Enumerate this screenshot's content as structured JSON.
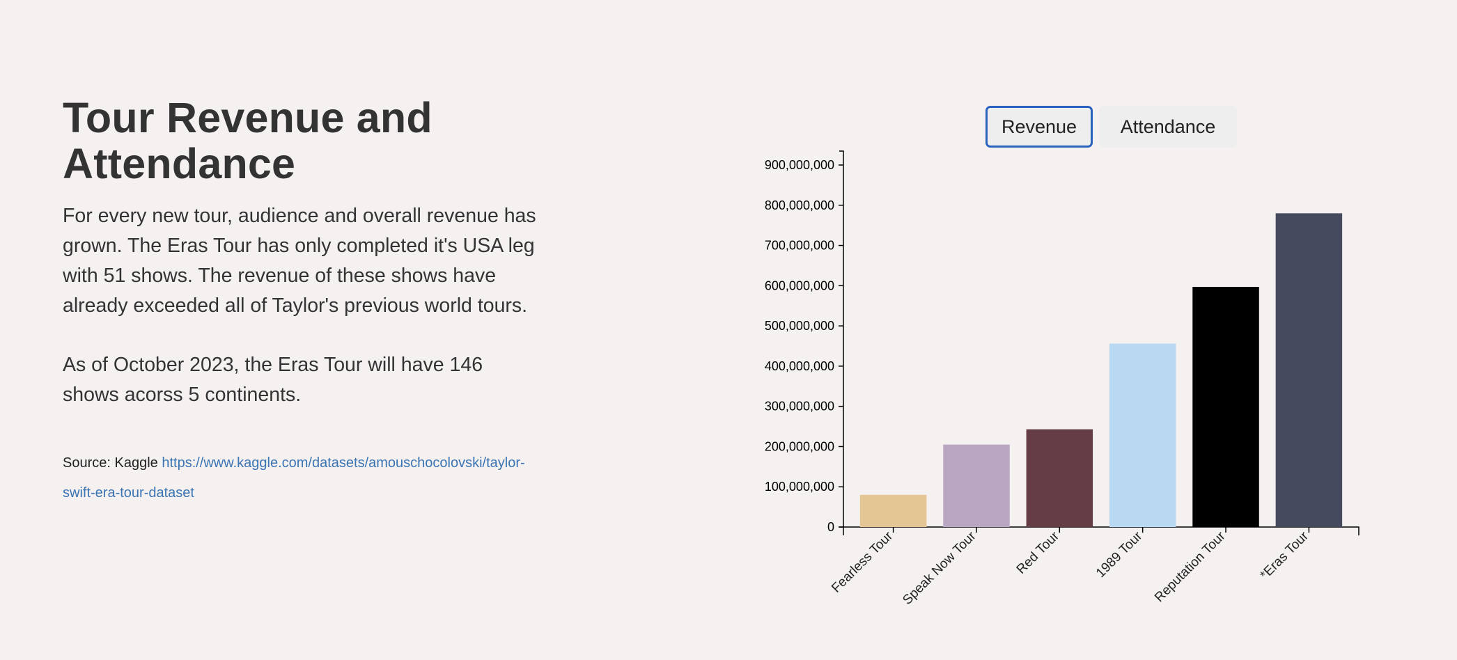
{
  "header": {
    "title": "Tour Revenue and Attendance"
  },
  "description": {
    "paragraph_1": "For every new tour, audience and overall revenue has grown. The Eras Tour has only completed it's USA leg with 51 shows. The revenue of these shows have already exceeded all of Taylor's previous world tours.",
    "paragraph_2": "As of October 2023, the Eras Tour will have 146 shows acorss 5 continents."
  },
  "source": {
    "label": "Source: Kaggle",
    "link_text": "https://www.kaggle.com/datasets/amouschocolovski/taylor-swift-era-tour-dataset"
  },
  "toggles": {
    "revenue_label": "Revenue",
    "attendance_label": "Attendance",
    "active": "Revenue"
  },
  "colors": {
    "active_toggle_border": "#2b62bf",
    "link": "#3b74b3"
  },
  "chart_data": {
    "type": "bar",
    "categories": [
      "Fearless Tour",
      "Speak Now Tour",
      "Red Tour",
      "1989 Tour",
      "Reputation Tour",
      "*Eras Tour"
    ],
    "values": [
      80000000,
      205000000,
      243000000,
      456000000,
      597000000,
      780000000
    ],
    "colors": [
      "#e4c594",
      "#b8a6c3",
      "#643d45",
      "#b9d8f1",
      "#000000",
      "#454a5e"
    ],
    "yticks": [
      "0",
      "100,000,000",
      "200,000,000",
      "300,000,000",
      "400,000,000",
      "500,000,000",
      "600,000,000",
      "700,000,000",
      "800,000,000",
      "900,000,000"
    ],
    "ylim": [
      0,
      900000000
    ],
    "title": "",
    "xlabel": "",
    "ylabel": "",
    "grid": false,
    "legend": "none"
  }
}
